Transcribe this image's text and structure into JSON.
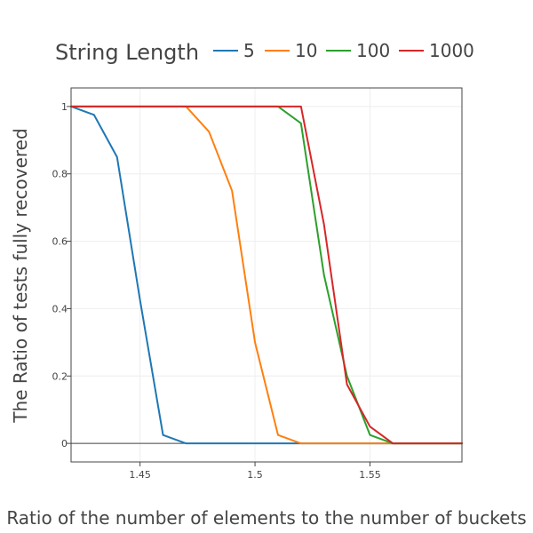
{
  "chart_data": {
    "type": "line",
    "legend": {
      "title": "String Length",
      "placement": "top"
    },
    "xlabel": "Ratio of the number of elements to the number of buckets",
    "ylabel": "The Ratio of tests fully recovered",
    "xlim": [
      1.42,
      1.59
    ],
    "ylim": [
      -0.055,
      1.055
    ],
    "grid": true,
    "x_ticks": [
      {
        "value": 1.45,
        "label": "1.45"
      },
      {
        "value": 1.5,
        "label": "1.5"
      },
      {
        "value": 1.55,
        "label": "1.55"
      }
    ],
    "y_ticks": [
      {
        "value": 0,
        "label": "0"
      },
      {
        "value": 0.2,
        "label": "0.2"
      },
      {
        "value": 0.4,
        "label": "0.4"
      },
      {
        "value": 0.6,
        "label": "0.6"
      },
      {
        "value": 0.8,
        "label": "0.8"
      },
      {
        "value": 1,
        "label": "1"
      }
    ],
    "x": [
      1.42,
      1.43,
      1.44,
      1.45,
      1.46,
      1.47,
      1.48,
      1.49,
      1.5,
      1.51,
      1.52,
      1.53,
      1.54,
      1.55,
      1.56,
      1.57,
      1.58,
      1.59
    ],
    "series": [
      {
        "name": "5",
        "color": "#1f77b4",
        "values": [
          1,
          0.975,
          0.85,
          0.425,
          0.025,
          0,
          0,
          0,
          0,
          0,
          0,
          0,
          0,
          0,
          0,
          0,
          0,
          0
        ]
      },
      {
        "name": "10",
        "color": "#ff7f0e",
        "values": [
          1,
          1,
          1,
          1,
          1,
          1,
          0.925,
          0.75,
          0.3,
          0.025,
          0,
          0,
          0,
          0,
          0,
          0,
          0,
          0
        ]
      },
      {
        "name": "100",
        "color": "#2ca02c",
        "values": [
          1,
          1,
          1,
          1,
          1,
          1,
          1,
          1,
          1,
          1,
          0.95,
          0.5,
          0.2,
          0.025,
          0,
          0,
          0,
          0
        ]
      },
      {
        "name": "1000",
        "color": "#d62728",
        "values": [
          1,
          1,
          1,
          1,
          1,
          1,
          1,
          1,
          1,
          1,
          1,
          0.65,
          0.175,
          0.05,
          0,
          0,
          0,
          0
        ]
      }
    ]
  }
}
